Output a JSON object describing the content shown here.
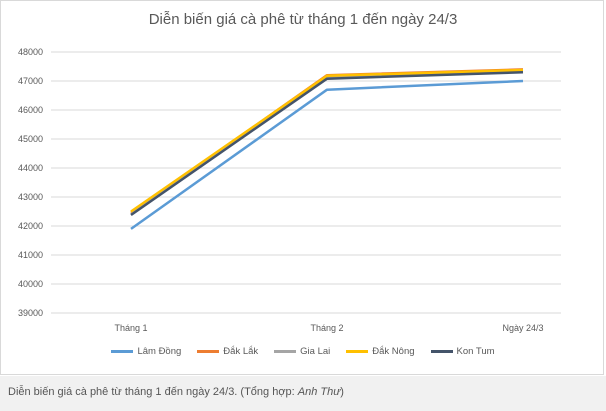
{
  "caption": {
    "text": "Diễn biến giá cà phê từ tháng 1 đến ngày 24/3. (Tổng hợp: ",
    "author": "Anh Thư",
    "tail": ")"
  },
  "chart_data": {
    "type": "line",
    "title": "Diễn biến giá cà phê từ tháng 1 đến ngày 24/3",
    "xlabel": "",
    "ylabel": "",
    "categories": [
      "Tháng 1",
      "Tháng 2",
      "Ngày 24/3"
    ],
    "ylim": [
      39000,
      48000
    ],
    "yticks": [
      "48000",
      "47000",
      "46000",
      "45000",
      "44000",
      "43000",
      "42000",
      "41000",
      "40000",
      "39000"
    ],
    "grid": true,
    "legend_position": "bottom",
    "series": [
      {
        "name": "Lâm Đồng",
        "color": "#5b9bd5",
        "values": [
          41900,
          46700,
          47000
        ]
      },
      {
        "name": "Đắk Lắk",
        "color": "#ed7d31",
        "values": [
          42450,
          47200,
          47400
        ]
      },
      {
        "name": "Gia Lai",
        "color": "#a5a5a5",
        "values": [
          42400,
          47150,
          47350
        ]
      },
      {
        "name": "Đắk Nông",
        "color": "#ffc000",
        "values": [
          42500,
          47180,
          47380
        ]
      },
      {
        "name": "Kon Tum",
        "color": "#44546a",
        "values": [
          42380,
          47080,
          47300
        ]
      }
    ]
  }
}
